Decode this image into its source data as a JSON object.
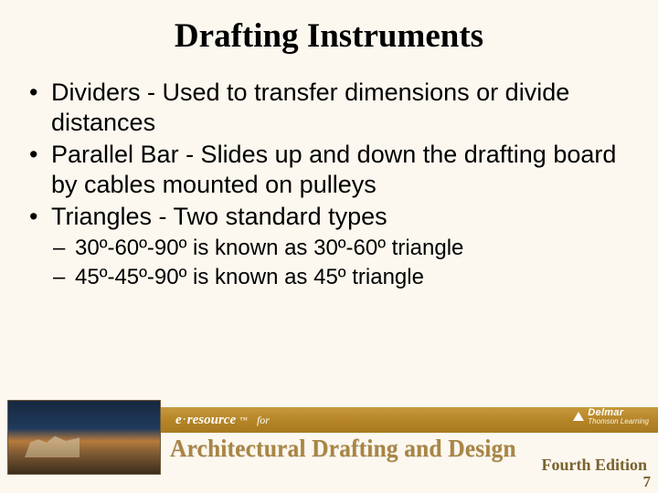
{
  "slide": {
    "title": "Drafting Instruments",
    "bullets": [
      {
        "text": "Dividers - Used to transfer dimensions or divide distances"
      },
      {
        "text": "Parallel Bar - Slides up and down the drafting board by cables mounted on pulleys"
      },
      {
        "text": "Triangles - Two standard types",
        "sub": [
          "30º-60º-90º is known as 30º-60º triangle",
          "45º-45º-90º is known as 45º triangle"
        ]
      }
    ]
  },
  "footer": {
    "resource_prefix": "e",
    "resource_word": "resource",
    "tm": "™",
    "for": "for",
    "publisher": "Delmar",
    "publisher_sub": "Thomson Learning",
    "book_title": "Architectural Drafting and Design",
    "edition": "Fourth Edition",
    "page": "7"
  },
  "colors": {
    "background": "#fcf8ef",
    "goldbar_top": "#c79a3f",
    "goldbar_bottom": "#a87a21",
    "booktitle": "#a98544",
    "edition": "#79622f"
  }
}
